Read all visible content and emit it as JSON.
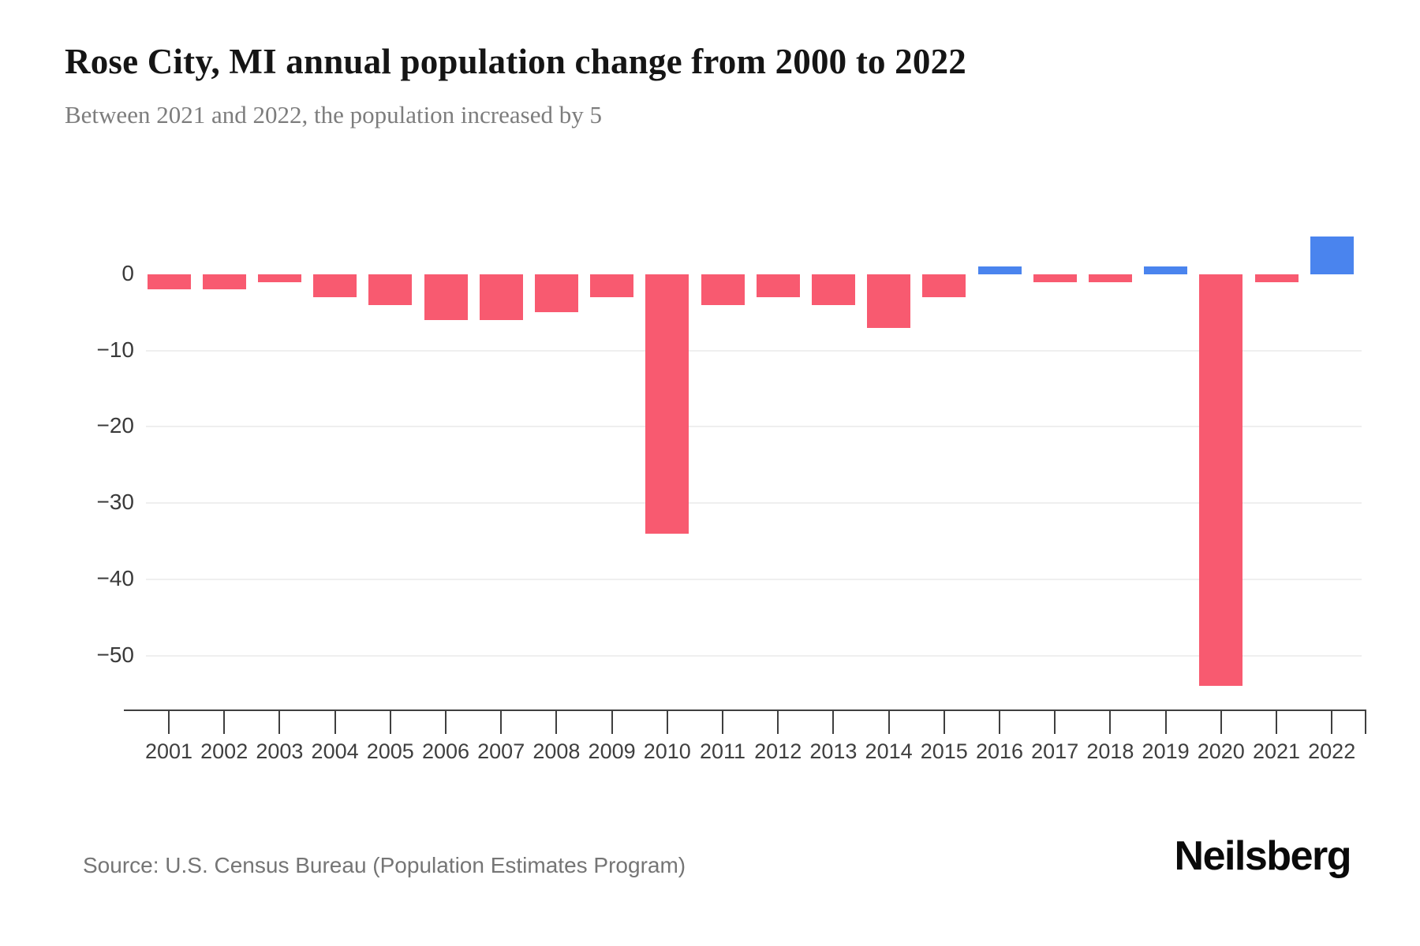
{
  "header": {
    "title": "Rose City, MI annual population change from 2000 to 2022",
    "subtitle": "Between 2021 and 2022, the population increased by 5"
  },
  "chart_data": {
    "type": "bar",
    "title": "Rose City, MI annual population change from 2000 to 2022",
    "subtitle": "Between 2021 and 2022, the population increased by 5",
    "categories": [
      "2001",
      "2002",
      "2003",
      "2004",
      "2005",
      "2006",
      "2007",
      "2008",
      "2009",
      "2010",
      "2011",
      "2012",
      "2013",
      "2014",
      "2015",
      "2016",
      "2017",
      "2018",
      "2019",
      "2020",
      "2021",
      "2022"
    ],
    "values": [
      -2,
      -2,
      -1,
      -3,
      -4,
      -6,
      -6,
      -5,
      -3,
      -34,
      -4,
      -3,
      -4,
      -7,
      -3,
      1,
      -1,
      -1,
      1,
      -54,
      -1,
      5
    ],
    "xlabel": "",
    "ylabel": "",
    "ylim": [
      -58,
      6
    ],
    "yticks": [
      0,
      -10,
      -20,
      -30,
      -40,
      -50
    ],
    "ytick_labels": [
      "0",
      "−10",
      "−20",
      "−30",
      "−40",
      "−50"
    ],
    "grid": "horizontal",
    "legend": "none",
    "colors": {
      "negative": "#F85A70",
      "positive": "#4A84EE",
      "gridline": "#EFEFEF",
      "axis": "#3F3F3F"
    }
  },
  "footer": {
    "source": "Source: U.S. Census Bureau (Population Estimates Program)",
    "brand": "Neilsberg"
  }
}
